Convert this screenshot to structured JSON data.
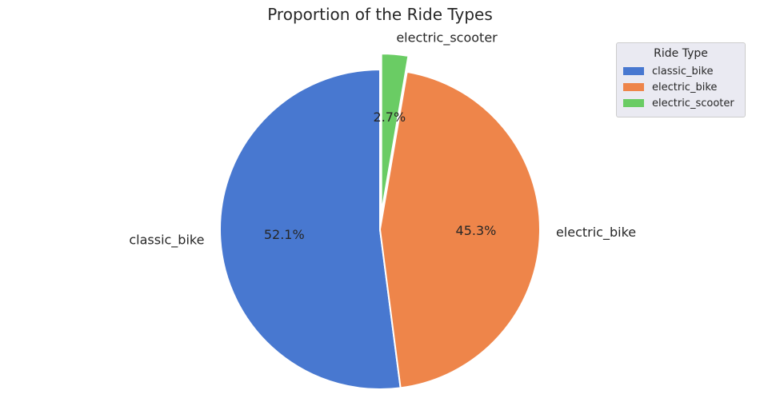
{
  "chart_data": {
    "type": "pie",
    "title": "Proportion of the Ride Types",
    "categories": [
      "classic_bike",
      "electric_bike",
      "electric_scooter"
    ],
    "values": [
      52.1,
      45.3,
      2.7
    ],
    "value_labels": [
      "52.1%",
      "45.3%",
      "2.7%"
    ],
    "explode": [
      0,
      0,
      0.1
    ],
    "start_angle_deg": 90,
    "direction": "counterclockwise",
    "colors": [
      "#4878d0",
      "#ee854a",
      "#6acc64"
    ],
    "legend": {
      "title": "Ride Type",
      "placement": "top-right",
      "entries": [
        "classic_bike",
        "electric_bike",
        "electric_scooter"
      ]
    }
  }
}
